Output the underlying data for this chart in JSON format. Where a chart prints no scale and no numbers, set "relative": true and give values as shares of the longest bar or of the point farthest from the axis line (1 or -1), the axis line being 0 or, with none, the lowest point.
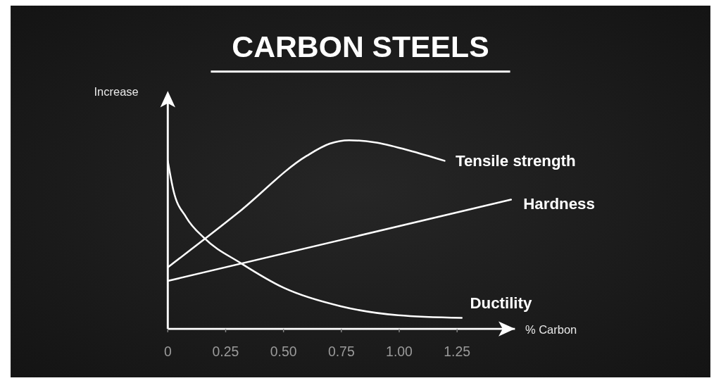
{
  "chart_data": {
    "type": "line",
    "title": "CARBON STEELS",
    "xlabel": "% Carbon",
    "ylabel": "Increase",
    "relative": true,
    "xlim": [
      0,
      1.5
    ],
    "xticks": [
      0,
      {
        "value": 0.25,
        "label": "0.25"
      },
      {
        "value": 0.5,
        "label": "0.50"
      },
      {
        "value": 0.75,
        "label": "0.75"
      },
      {
        "value": 1,
        "label": "1.00"
      },
      {
        "value": 1.25,
        "label": "1.25"
      }
    ],
    "grid": false,
    "marker": "none",
    "line_style": "solid",
    "series": [
      {
        "name": "Tensile strength",
        "color": "#ffffff",
        "x": [
          0,
          0.304,
          0.6,
          0.7,
          0.783,
          0.895,
          1.043,
          1.196
        ],
        "values": [
          0.326,
          0.616,
          0.917,
          0.982,
          1,
          0.989,
          0.946,
          0.891
        ]
      },
      {
        "name": "Hardness",
        "color": "#ffffff",
        "x": [
          0,
          1.483
        ],
        "values": [
          0.254,
          0.685
        ]
      },
      {
        "name": "Ductility",
        "color": "#ffffff",
        "x": [
          0,
          0.024,
          0.08,
          0.157,
          0.316,
          0.502,
          0.747,
          0.996,
          1.27
        ],
        "values": [
          0.891,
          0.736,
          0.591,
          0.482,
          0.348,
          0.217,
          0.12,
          0.072,
          0.058
        ]
      }
    ]
  }
}
